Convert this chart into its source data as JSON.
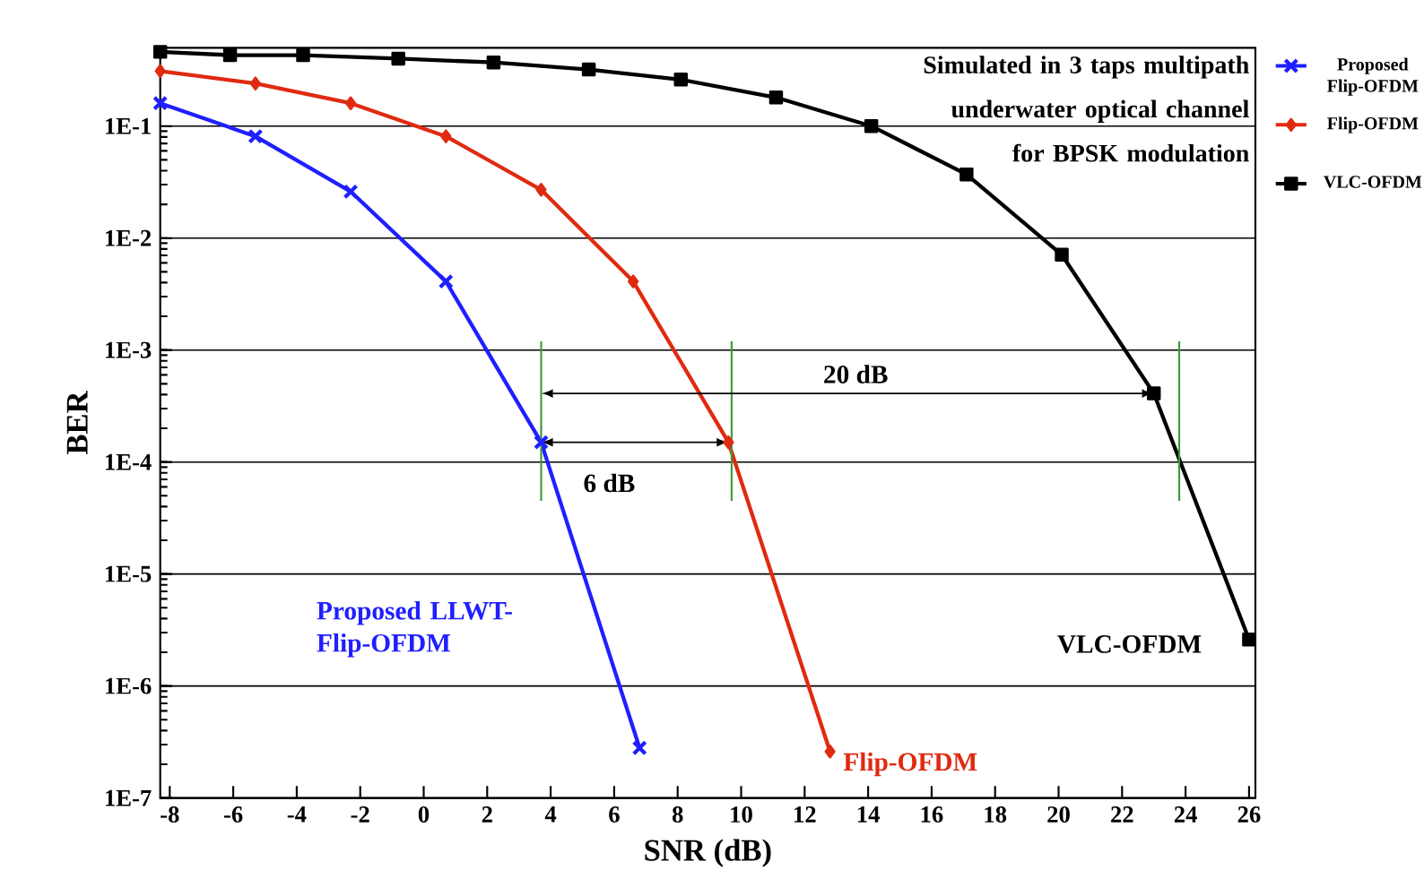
{
  "chart_data": {
    "type": "line",
    "xlabel": "SNR (dB)",
    "ylabel": "BER",
    "log": "y",
    "grid": "y",
    "legend": "top right",
    "line_style": "solid",
    "xlim": [
      -8.3,
      26.2
    ],
    "ylim": [
      1e-07,
      0.5
    ],
    "xticks": [
      -8,
      -6,
      -4,
      -2,
      0,
      2,
      4,
      6,
      8,
      10,
      12,
      14,
      16,
      18,
      20,
      22,
      24,
      26
    ],
    "yticks": [
      {
        "value": 1e-07,
        "label": "1E-7"
      },
      {
        "value": 1e-06,
        "label": "1E-6"
      },
      {
        "value": 1e-05,
        "label": "1E-5"
      },
      {
        "value": 0.0001,
        "label": "1E-4"
      },
      {
        "value": 0.001,
        "label": "1E-3"
      },
      {
        "value": 0.01,
        "label": "1E-2"
      },
      {
        "value": 0.1,
        "label": "1E-1"
      }
    ],
    "series": [
      {
        "name": "Proposed Flip-OFDM",
        "color": "#1f1fff",
        "marker": "cross",
        "x": [
          -8.3,
          -5.3,
          -2.3,
          0.7,
          3.7,
          6.8
        ],
        "values": [
          0.16,
          0.081,
          0.026,
          0.0041,
          0.00015,
          2.8e-07
        ]
      },
      {
        "name": "Flip-OFDM",
        "color": "#e02a10",
        "marker": "diamond",
        "x": [
          -8.3,
          -5.3,
          -2.3,
          0.7,
          3.7,
          6.6,
          9.6,
          12.8
        ],
        "values": [
          0.31,
          0.24,
          0.16,
          0.081,
          0.027,
          0.0041,
          0.00015,
          2.6e-07
        ]
      },
      {
        "name": "VLC-OFDM",
        "color": "#000000",
        "marker": "square",
        "x": [
          -8.3,
          -6.1,
          -3.8,
          -0.8,
          2.2,
          5.2,
          8.1,
          11.1,
          14.1,
          17.1,
          20.1,
          23.0,
          26.0
        ],
        "values": [
          0.46,
          0.43,
          0.43,
          0.4,
          0.37,
          0.32,
          0.26,
          0.18,
          0.1,
          0.037,
          0.0071,
          0.00041,
          2.6e-06
        ]
      }
    ],
    "ref_lines": [
      {
        "axis": "x",
        "value": 3.7,
        "color": "#3a9a3a"
      },
      {
        "axis": "x",
        "value": 9.7,
        "color": "#3a9a3a"
      },
      {
        "axis": "x",
        "value": 23.8,
        "color": "#3a9a3a"
      }
    ],
    "annotations": [
      "Simulated in 3 taps multipath underwater optical channel for BPSK modulation",
      "Proposed LLWT-Flip-OFDM",
      "Flip-OFDM",
      "VLC-OFDM",
      "20 dB",
      "6 dB"
    ]
  }
}
